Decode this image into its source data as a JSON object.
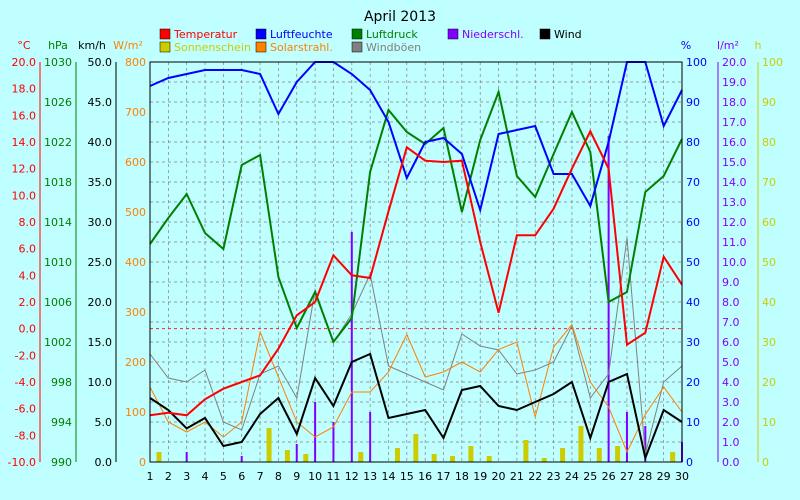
{
  "chart_data": {
    "type": "line",
    "title": "April 2013",
    "x": [
      1,
      2,
      3,
      4,
      5,
      6,
      7,
      8,
      9,
      10,
      11,
      12,
      13,
      14,
      15,
      16,
      17,
      18,
      19,
      20,
      21,
      22,
      23,
      24,
      25,
      26,
      27,
      28,
      29,
      30
    ],
    "xlim": [
      1,
      30
    ],
    "legend": [
      {
        "label": "Temperatur",
        "color": "#ff0000"
      },
      {
        "label": "Luftfeuchte",
        "color": "#0000ff"
      },
      {
        "label": "Luftdruck",
        "color": "#008000"
      },
      {
        "label": "Niederschl.",
        "color": "#8000ff"
      },
      {
        "label": "Wind",
        "color": "#000000"
      },
      {
        "label": "Sonnenschein",
        "color": "#cccc00"
      },
      {
        "label": "Solarstrahl.",
        "color": "#ff8000"
      },
      {
        "label": "Windböen",
        "color": "#808080"
      }
    ],
    "axes": [
      {
        "unit": "°C",
        "color": "#ff0000",
        "ylim": [
          -10,
          20
        ],
        "ticks": [
          "20.0",
          "18.0",
          "16.0",
          "14.0",
          "12.0",
          "10.0",
          "8.0",
          "6.0",
          "4.0",
          "2.0",
          "0.0",
          "-2.0",
          "-4.0",
          "-6.0",
          "-8.0",
          "-10.0"
        ]
      },
      {
        "unit": "hPa",
        "color": "#008000",
        "ylim": [
          990,
          1030
        ],
        "ticks": [
          "1030",
          "1026",
          "1022",
          "1018",
          "1014",
          "1010",
          "1006",
          "1002",
          "998",
          "994",
          "990"
        ]
      },
      {
        "unit": "km/h",
        "color": "#000000",
        "ylim": [
          0,
          50
        ],
        "ticks": [
          "50.0",
          "45.0",
          "40.0",
          "35.0",
          "30.0",
          "25.0",
          "20.0",
          "15.0",
          "10.0",
          "5.0",
          "0.0"
        ]
      },
      {
        "unit": "W/m²",
        "color": "#ff8000",
        "ylim": [
          0,
          800
        ],
        "ticks": [
          "800",
          "700",
          "600",
          "500",
          "400",
          "300",
          "200",
          "100",
          "0"
        ]
      },
      {
        "unit": "%",
        "color": "#0000ff",
        "ylim": [
          0,
          100
        ],
        "ticks": [
          "100",
          "90",
          "80",
          "70",
          "60",
          "50",
          "40",
          "30",
          "20",
          "10",
          "0"
        ]
      },
      {
        "unit": "l/m²",
        "color": "#8000ff",
        "ylim": [
          0,
          20
        ],
        "ticks": [
          "20.0",
          "19.0",
          "18.0",
          "17.0",
          "16.0",
          "15.0",
          "14.0",
          "13.0",
          "12.0",
          "11.0",
          "10.0",
          "9.0",
          "8.0",
          "7.0",
          "6.0",
          "5.0",
          "4.0",
          "3.0",
          "2.0",
          "1.0",
          "0.0"
        ]
      },
      {
        "unit": "h",
        "color": "#cccc00",
        "ylim": [
          0,
          100
        ],
        "ticks": [
          "100",
          "90",
          "80",
          "70",
          "60",
          "50",
          "40",
          "30",
          "20",
          "10",
          "0"
        ]
      }
    ],
    "series": [
      {
        "name": "Temperatur",
        "axis": 0,
        "kind": "line",
        "color": "#ff0000",
        "width": 2,
        "values": [
          -6.5,
          -6.3,
          -6.5,
          -5.3,
          -4.5,
          -4.0,
          -3.5,
          -1.5,
          1.0,
          2.0,
          5.5,
          4.0,
          3.8,
          8.8,
          13.6,
          12.6,
          12.5,
          12.6,
          6.5,
          1.2,
          7.0,
          7.0,
          9.0,
          12.0,
          14.8,
          12.0,
          -1.2,
          -0.3,
          5.4,
          3.3
        ]
      },
      {
        "name": "Luftfeuchte",
        "axis": 4,
        "kind": "line",
        "color": "#0000ff",
        "width": 2,
        "values": [
          94,
          96,
          97,
          98,
          98,
          98,
          97,
          87,
          95,
          100,
          100,
          97,
          93,
          85,
          71,
          80,
          81,
          77,
          63,
          82,
          83,
          84,
          72,
          72,
          64,
          80,
          100,
          100,
          84,
          93
        ]
      },
      {
        "name": "Luftdruck",
        "axis": 1,
        "kind": "line",
        "color": "#008000",
        "width": 2,
        "values": [
          1011.8,
          1014.4,
          1016.8,
          1012.9,
          1011.3,
          1019.7,
          1020.7,
          1008.5,
          1003.4,
          1007.0,
          1002.0,
          1004.4,
          1019.0,
          1025.2,
          1023.0,
          1021.8,
          1023.4,
          1015.0,
          1022.2,
          1027.0,
          1018.6,
          1016.5,
          1020.8,
          1025.0,
          1021.0,
          1006.0,
          1007.0,
          1017.0,
          1018.6,
          1022.3
        ]
      },
      {
        "name": "Wind",
        "axis": 2,
        "kind": "line",
        "color": "#000000",
        "width": 2,
        "values": [
          8.0,
          6.5,
          4.2,
          5.5,
          2.0,
          2.5,
          6.0,
          8.0,
          3.5,
          10.5,
          7.0,
          12.5,
          13.5,
          5.5,
          6.0,
          6.5,
          3.0,
          9.0,
          9.5,
          7.0,
          6.5,
          7.5,
          8.5,
          10.0,
          3.0,
          10.0,
          11.0,
          0.5,
          6.5,
          5.0
        ]
      },
      {
        "name": "Windböen",
        "axis": 2,
        "kind": "line",
        "color": "#808080",
        "width": 1,
        "values": [
          13.5,
          10.5,
          10.0,
          11.5,
          5.0,
          4.0,
          11.0,
          12.0,
          8.0,
          21.5,
          15.0,
          18.5,
          23.5,
          12.0,
          11.0,
          10.0,
          9.0,
          16.0,
          14.5,
          14.0,
          11.0,
          11.5,
          12.5,
          17.0,
          8.0,
          11.0,
          28.0,
          1.0,
          10.0,
          12.0
        ]
      },
      {
        "name": "Solarstrahl.",
        "axis": 3,
        "kind": "line",
        "color": "#ff8000",
        "width": 1,
        "values": [
          150,
          80,
          60,
          80,
          50,
          80,
          260,
          170,
          80,
          50,
          70,
          140,
          140,
          180,
          255,
          170,
          180,
          200,
          180,
          225,
          240,
          90,
          230,
          275,
          160,
          110,
          20,
          95,
          150,
          100
        ]
      },
      {
        "name": "Niederschl.",
        "axis": 5,
        "kind": "bar",
        "color": "#8000ff",
        "values": [
          0,
          0,
          0.5,
          0,
          0,
          0.3,
          0,
          0,
          0.9,
          3.0,
          2.0,
          11.5,
          2.5,
          0,
          0,
          0,
          0,
          0,
          0,
          0,
          0,
          0,
          0,
          0,
          0,
          16.3,
          2.5,
          1.8,
          0,
          1.0
        ]
      },
      {
        "name": "Sonnenschein",
        "axis": 6,
        "kind": "bar",
        "color": "#cccc00",
        "values": [
          2.5,
          0,
          0,
          0,
          0,
          0,
          8.5,
          3.0,
          2.0,
          0,
          0,
          2.5,
          0,
          3.5,
          7.0,
          2.0,
          1.5,
          4.0,
          1.5,
          0,
          5.5,
          1.0,
          3.5,
          9.0,
          3.5,
          4.0,
          0,
          0,
          2.5,
          0
        ]
      }
    ],
    "grid": true
  }
}
